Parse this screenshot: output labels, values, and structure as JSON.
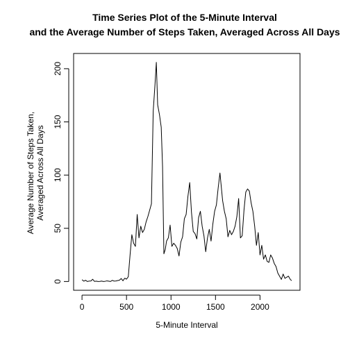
{
  "chart_data": {
    "type": "line",
    "title": [
      "Time Series Plot of the 5-Minute Interval",
      "and the Average Number of Steps Taken, Averaged Across All Days"
    ],
    "xlabel": "5-Minute Interval",
    "ylabel": [
      "Average Number of Steps Taken,",
      "Averaged Across All Days"
    ],
    "xlim": [
      -94.4,
      2449.4
    ],
    "ylim": [
      -8.24,
      214.3
    ],
    "x_ticks": [
      0,
      500,
      1000,
      1500,
      2000
    ],
    "y_ticks": [
      0,
      50,
      100,
      150,
      200
    ],
    "x_tick_labels": [
      "0",
      "500",
      "1000",
      "1500",
      "2000"
    ],
    "y_tick_labels": [
      "0",
      "50",
      "100",
      "150",
      "200"
    ],
    "grid": false,
    "color": "#000000",
    "series": [
      {
        "x": [
          0,
          20,
          40,
          60,
          80,
          100,
          120,
          140,
          160,
          180,
          200,
          220,
          240,
          260,
          280,
          300,
          320,
          340,
          360,
          380,
          400,
          420,
          440,
          460,
          480,
          500,
          520,
          540,
          560,
          580,
          600,
          620,
          640,
          660,
          680,
          700,
          720,
          740,
          760,
          780,
          800,
          820,
          835,
          850,
          870,
          890,
          905,
          920,
          935,
          950,
          970,
          990,
          1010,
          1030,
          1050,
          1070,
          1090,
          1110,
          1130,
          1150,
          1170,
          1190,
          1210,
          1230,
          1250,
          1270,
          1290,
          1310,
          1330,
          1350,
          1370,
          1390,
          1410,
          1430,
          1450,
          1470,
          1490,
          1510,
          1530,
          1550,
          1565,
          1580,
          1600,
          1620,
          1640,
          1660,
          1680,
          1700,
          1720,
          1740,
          1760,
          1780,
          1800,
          1820,
          1840,
          1860,
          1880,
          1900,
          1920,
          1940,
          1960,
          1980,
          2000,
          2020,
          2040,
          2060,
          2080,
          2100,
          2120,
          2140,
          2160,
          2180,
          2200,
          2220,
          2240,
          2260,
          2280,
          2300,
          2320,
          2340,
          2355
        ],
        "y": [
          1.7,
          0.3,
          1.2,
          0,
          0.4,
          0.5,
          2.1,
          0.1,
          0.3,
          0,
          0.1,
          0.4,
          0,
          0.2,
          0.6,
          0.3,
          0,
          1.1,
          0.4,
          0.5,
          0.9,
          1.2,
          2.8,
          0.7,
          3.1,
          2.2,
          4.5,
          25,
          44,
          36,
          33,
          63,
          41,
          52,
          46,
          49,
          56,
          61,
          67,
          73,
          160,
          185,
          206,
          166,
          157,
          145,
          108,
          26,
          30,
          38,
          41,
          53,
          33,
          36,
          34,
          31,
          24,
          37,
          42,
          59,
          63,
          80,
          93,
          65,
          47,
          45,
          40,
          60,
          66,
          52,
          43,
          28,
          41,
          49,
          38,
          54,
          66,
          72,
          88,
          102,
          89,
          76,
          66,
          59,
          42,
          48,
          44,
          47,
          52,
          61,
          78,
          41,
          43,
          67,
          84,
          87,
          85,
          74,
          66,
          52,
          34,
          46,
          25,
          34,
          21,
          25,
          19,
          18,
          25,
          22,
          17,
          14,
          8,
          5,
          2,
          7,
          3,
          4,
          5,
          2,
          0.8
        ]
      }
    ]
  }
}
